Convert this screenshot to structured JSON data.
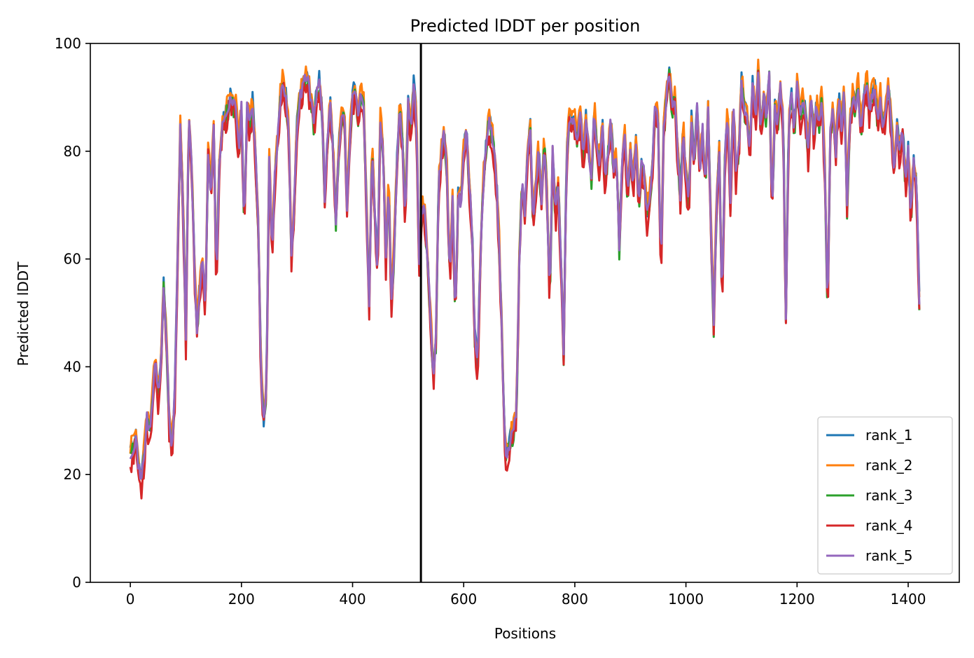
{
  "chart_data": {
    "type": "line",
    "title": "Predicted lDDT per position",
    "xlabel": "Positions",
    "ylabel": "Predicted lDDT",
    "xlim": [
      -72,
      1492
    ],
    "ylim": [
      0,
      100
    ],
    "xticks": [
      0,
      200,
      400,
      600,
      800,
      1000,
      1200,
      1400
    ],
    "yticks": [
      0,
      20,
      40,
      60,
      80,
      100
    ],
    "grid": false,
    "legend_position": "bottom-right",
    "vline_x": 523,
    "vline_color": "#000000",
    "base_profile": [
      [
        0,
        24
      ],
      [
        5,
        25
      ],
      [
        10,
        27
      ],
      [
        15,
        21
      ],
      [
        20,
        19
      ],
      [
        25,
        24
      ],
      [
        30,
        31
      ],
      [
        35,
        27
      ],
      [
        40,
        34
      ],
      [
        45,
        42
      ],
      [
        50,
        35
      ],
      [
        55,
        40
      ],
      [
        60,
        55
      ],
      [
        65,
        45
      ],
      [
        70,
        30
      ],
      [
        75,
        25
      ],
      [
        80,
        35
      ],
      [
        85,
        60
      ],
      [
        90,
        84
      ],
      [
        95,
        70
      ],
      [
        100,
        45
      ],
      [
        105,
        87
      ],
      [
        110,
        78
      ],
      [
        115,
        60
      ],
      [
        120,
        46
      ],
      [
        125,
        55
      ],
      [
        130,
        60
      ],
      [
        135,
        50
      ],
      [
        140,
        80
      ],
      [
        145,
        72
      ],
      [
        150,
        85
      ],
      [
        155,
        55
      ],
      [
        160,
        78
      ],
      [
        165,
        84
      ],
      [
        170,
        86
      ],
      [
        180,
        90
      ],
      [
        190,
        88
      ],
      [
        195,
        80
      ],
      [
        200,
        88
      ],
      [
        205,
        66
      ],
      [
        210,
        88
      ],
      [
        215,
        85
      ],
      [
        220,
        89
      ],
      [
        225,
        79
      ],
      [
        230,
        68
      ],
      [
        235,
        40
      ],
      [
        240,
        30
      ],
      [
        245,
        35
      ],
      [
        250,
        80
      ],
      [
        255,
        60
      ],
      [
        260,
        75
      ],
      [
        265,
        82
      ],
      [
        270,
        90
      ],
      [
        275,
        93
      ],
      [
        280,
        90
      ],
      [
        285,
        85
      ],
      [
        290,
        60
      ],
      [
        295,
        70
      ],
      [
        300,
        85
      ],
      [
        305,
        90
      ],
      [
        310,
        92
      ],
      [
        315,
        94
      ],
      [
        320,
        93
      ],
      [
        325,
        90
      ],
      [
        330,
        85
      ],
      [
        335,
        91
      ],
      [
        340,
        93
      ],
      [
        345,
        88
      ],
      [
        350,
        71
      ],
      [
        355,
        83
      ],
      [
        360,
        88
      ],
      [
        365,
        80
      ],
      [
        370,
        67
      ],
      [
        375,
        80
      ],
      [
        380,
        87
      ],
      [
        385,
        88
      ],
      [
        390,
        70
      ],
      [
        395,
        82
      ],
      [
        400,
        90
      ],
      [
        405,
        92
      ],
      [
        410,
        86
      ],
      [
        415,
        91
      ],
      [
        420,
        89
      ],
      [
        425,
        70
      ],
      [
        430,
        52
      ],
      [
        435,
        82
      ],
      [
        440,
        68
      ],
      [
        445,
        58
      ],
      [
        450,
        86
      ],
      [
        455,
        80
      ],
      [
        460,
        60
      ],
      [
        465,
        75
      ],
      [
        470,
        52
      ],
      [
        475,
        62
      ],
      [
        480,
        78
      ],
      [
        485,
        88
      ],
      [
        490,
        82
      ],
      [
        495,
        66
      ],
      [
        500,
        90
      ],
      [
        505,
        84
      ],
      [
        510,
        92
      ],
      [
        515,
        86
      ],
      [
        520,
        58
      ],
      [
        525,
        70
      ],
      [
        530,
        68
      ],
      [
        535,
        60
      ],
      [
        540,
        50
      ],
      [
        545,
        38
      ],
      [
        550,
        45
      ],
      [
        555,
        74
      ],
      [
        560,
        80
      ],
      [
        565,
        84
      ],
      [
        570,
        76
      ],
      [
        575,
        56
      ],
      [
        580,
        72
      ],
      [
        585,
        48
      ],
      [
        590,
        72
      ],
      [
        595,
        70
      ],
      [
        600,
        80
      ],
      [
        605,
        84
      ],
      [
        610,
        74
      ],
      [
        615,
        66
      ],
      [
        620,
        46
      ],
      [
        625,
        40
      ],
      [
        630,
        60
      ],
      [
        635,
        74
      ],
      [
        640,
        80
      ],
      [
        645,
        86
      ],
      [
        650,
        84
      ],
      [
        655,
        80
      ],
      [
        660,
        72
      ],
      [
        665,
        60
      ],
      [
        670,
        40
      ],
      [
        675,
        24
      ],
      [
        680,
        24
      ],
      [
        685,
        27
      ],
      [
        690,
        28
      ],
      [
        695,
        32
      ],
      [
        700,
        60
      ],
      [
        705,
        74
      ],
      [
        710,
        68
      ],
      [
        715,
        80
      ],
      [
        720,
        84
      ],
      [
        725,
        66
      ],
      [
        730,
        74
      ],
      [
        735,
        80
      ],
      [
        740,
        70
      ],
      [
        745,
        82
      ],
      [
        750,
        72
      ],
      [
        755,
        52
      ],
      [
        760,
        80
      ],
      [
        765,
        68
      ],
      [
        770,
        74
      ],
      [
        775,
        60
      ],
      [
        780,
        42
      ],
      [
        785,
        78
      ],
      [
        790,
        86
      ],
      [
        800,
        85
      ],
      [
        805,
        82
      ],
      [
        810,
        88
      ],
      [
        815,
        78
      ],
      [
        820,
        86
      ],
      [
        825,
        80
      ],
      [
        830,
        75
      ],
      [
        835,
        88
      ],
      [
        840,
        80
      ],
      [
        845,
        78
      ],
      [
        850,
        84
      ],
      [
        855,
        74
      ],
      [
        860,
        80
      ],
      [
        865,
        86
      ],
      [
        870,
        76
      ],
      [
        875,
        80
      ],
      [
        880,
        62
      ],
      [
        885,
        78
      ],
      [
        890,
        82
      ],
      [
        895,
        72
      ],
      [
        900,
        80
      ],
      [
        905,
        74
      ],
      [
        910,
        82
      ],
      [
        915,
        70
      ],
      [
        920,
        78
      ],
      [
        925,
        76
      ],
      [
        930,
        68
      ],
      [
        935,
        72
      ],
      [
        940,
        78
      ],
      [
        945,
        90
      ],
      [
        950,
        85
      ],
      [
        955,
        58
      ],
      [
        960,
        84
      ],
      [
        965,
        90
      ],
      [
        970,
        95
      ],
      [
        975,
        88
      ],
      [
        980,
        90
      ],
      [
        985,
        80
      ],
      [
        990,
        72
      ],
      [
        995,
        84
      ],
      [
        1000,
        76
      ],
      [
        1005,
        70
      ],
      [
        1010,
        86
      ],
      [
        1015,
        78
      ],
      [
        1020,
        88
      ],
      [
        1025,
        76
      ],
      [
        1030,
        84
      ],
      [
        1035,
        74
      ],
      [
        1040,
        88
      ],
      [
        1045,
        66
      ],
      [
        1050,
        48
      ],
      [
        1055,
        70
      ],
      [
        1060,
        80
      ],
      [
        1065,
        52
      ],
      [
        1070,
        78
      ],
      [
        1075,
        88
      ],
      [
        1080,
        70
      ],
      [
        1085,
        90
      ],
      [
        1090,
        76
      ],
      [
        1095,
        80
      ],
      [
        1100,
        93
      ],
      [
        1105,
        88
      ],
      [
        1110,
        86
      ],
      [
        1115,
        80
      ],
      [
        1120,
        92
      ],
      [
        1125,
        86
      ],
      [
        1130,
        95
      ],
      [
        1135,
        84
      ],
      [
        1140,
        90
      ],
      [
        1145,
        86
      ],
      [
        1150,
        94
      ],
      [
        1155,
        68
      ],
      [
        1160,
        88
      ],
      [
        1165,
        85
      ],
      [
        1170,
        92
      ],
      [
        1175,
        86
      ],
      [
        1180,
        48
      ],
      [
        1185,
        86
      ],
      [
        1190,
        90
      ],
      [
        1195,
        84
      ],
      [
        1200,
        92
      ],
      [
        1205,
        86
      ],
      [
        1210,
        90
      ],
      [
        1215,
        88
      ],
      [
        1220,
        80
      ],
      [
        1225,
        90
      ],
      [
        1230,
        84
      ],
      [
        1235,
        88
      ],
      [
        1240,
        86
      ],
      [
        1245,
        90
      ],
      [
        1250,
        76
      ],
      [
        1255,
        50
      ],
      [
        1260,
        84
      ],
      [
        1265,
        88
      ],
      [
        1270,
        80
      ],
      [
        1275,
        90
      ],
      [
        1280,
        84
      ],
      [
        1285,
        92
      ],
      [
        1290,
        70
      ],
      [
        1295,
        86
      ],
      [
        1300,
        90
      ],
      [
        1305,
        88
      ],
      [
        1310,
        92
      ],
      [
        1315,
        84
      ],
      [
        1320,
        90
      ],
      [
        1325,
        93
      ],
      [
        1330,
        88
      ],
      [
        1335,
        90
      ],
      [
        1340,
        92
      ],
      [
        1345,
        86
      ],
      [
        1350,
        90
      ],
      [
        1355,
        84
      ],
      [
        1360,
        88
      ],
      [
        1365,
        92
      ],
      [
        1370,
        84
      ],
      [
        1375,
        76
      ],
      [
        1380,
        84
      ],
      [
        1385,
        80
      ],
      [
        1390,
        84
      ],
      [
        1395,
        74
      ],
      [
        1400,
        80
      ],
      [
        1405,
        68
      ],
      [
        1410,
        78
      ],
      [
        1415,
        74
      ],
      [
        1420,
        52
      ]
    ],
    "series": [
      {
        "name": "rank_1",
        "color": "#1f77b4",
        "offset": 0.5,
        "jitter": 1.6,
        "seed": 11
      },
      {
        "name": "rank_2",
        "color": "#ff7f0e",
        "offset": 1.2,
        "jitter": 1.8,
        "seed": 23
      },
      {
        "name": "rank_3",
        "color": "#2ca02c",
        "offset": -0.8,
        "jitter": 1.8,
        "seed": 37
      },
      {
        "name": "rank_4",
        "color": "#d62728",
        "offset": -1.8,
        "jitter": 2.2,
        "seed": 53
      },
      {
        "name": "rank_5",
        "color": "#9467bd",
        "offset": 0.0,
        "jitter": 1.2,
        "seed": 71
      }
    ]
  }
}
